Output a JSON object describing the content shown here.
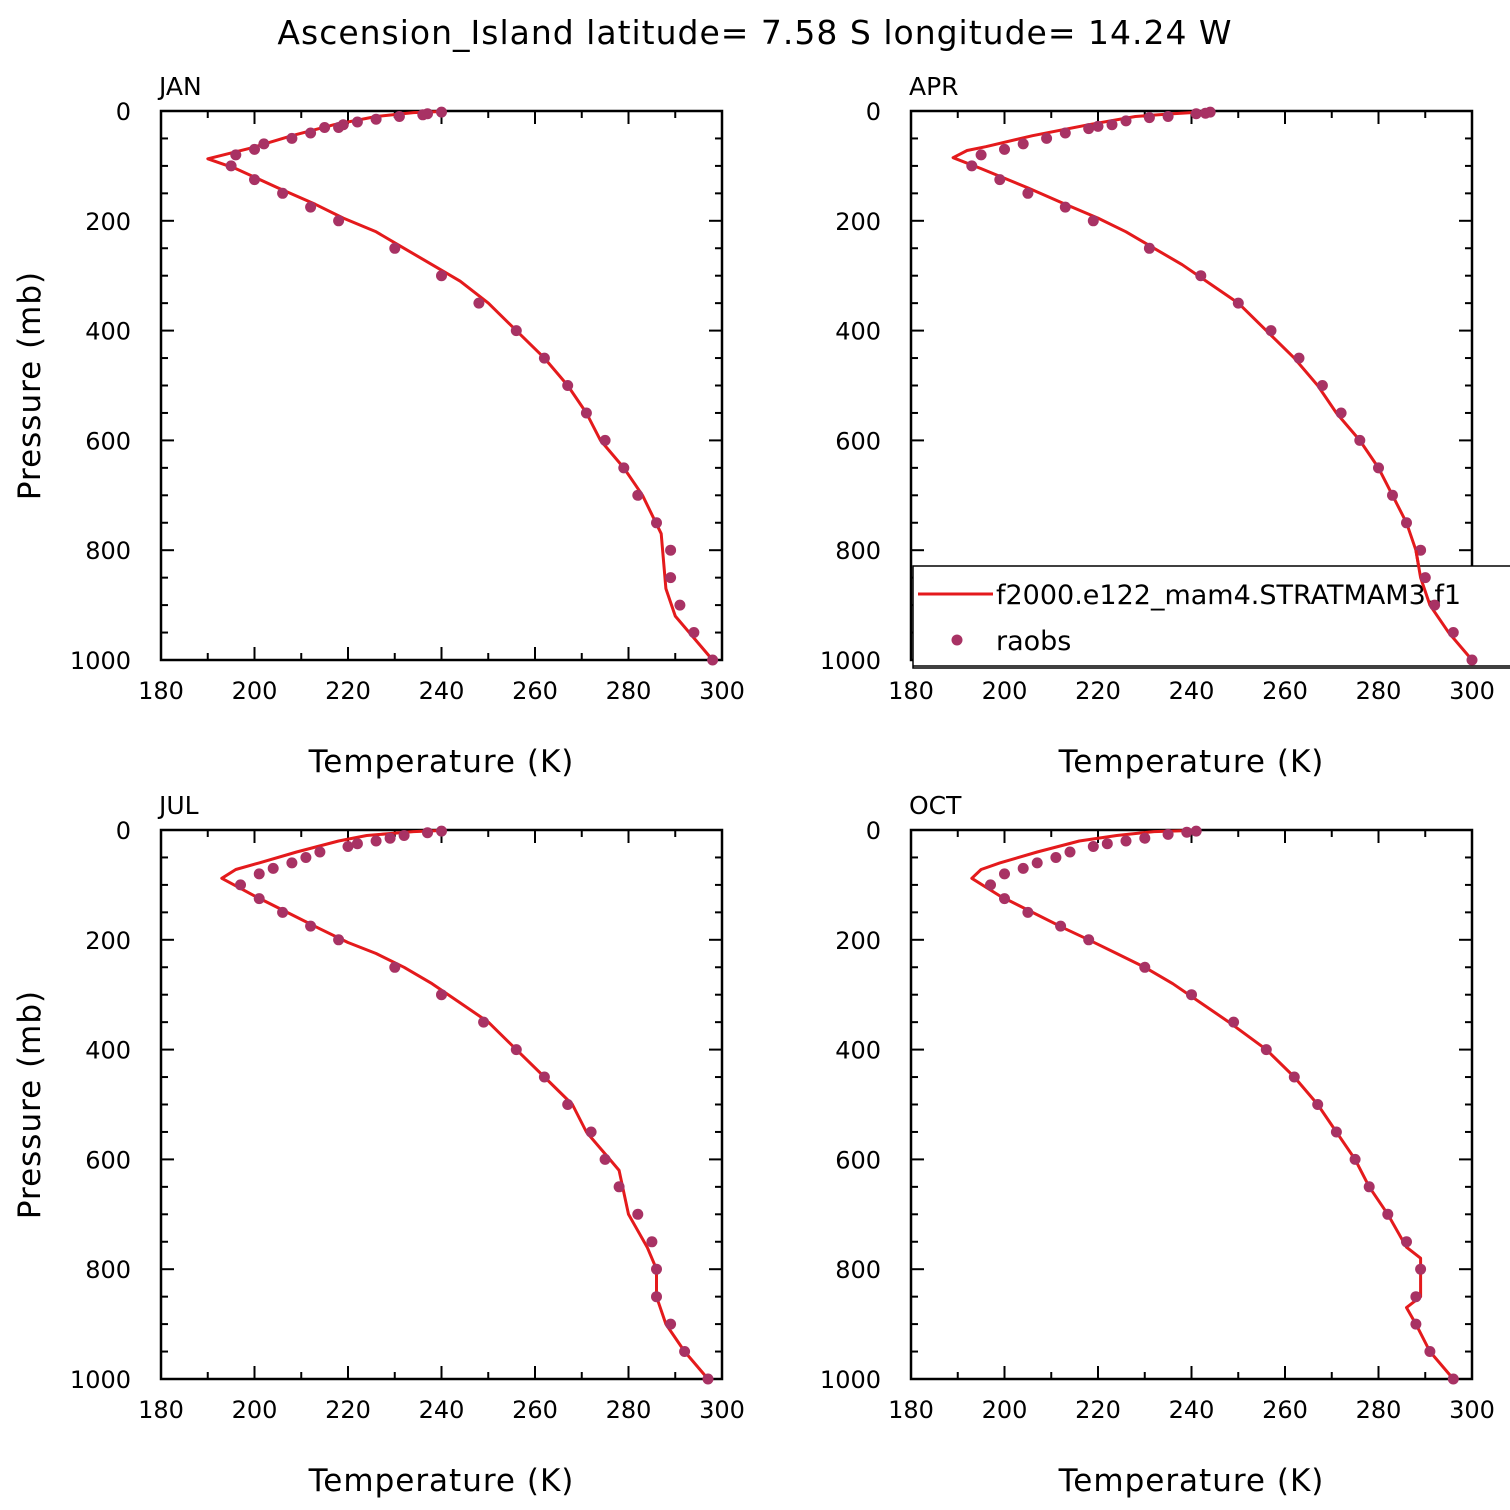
{
  "figure_title": "Ascension_Island  latitude= 7.58 S longitude= 14.24 W",
  "legend": {
    "line_label": "f2000.e122_mam4.STRATMAM3.f1",
    "dots_label": "raobs"
  },
  "colors": {
    "model_line": "#e41a1c",
    "obs_dots": "#a83264"
  },
  "chart_data": [
    {
      "type": "line",
      "title": "JAN",
      "xlabel": "Temperature (K)",
      "ylabel": "Pressure (mb)",
      "xlim": [
        180,
        300
      ],
      "ylim": [
        1000,
        0
      ],
      "xticks": [
        180,
        200,
        220,
        240,
        260,
        280,
        300
      ],
      "yticks": [
        0,
        200,
        400,
        600,
        800,
        1000
      ],
      "series": [
        {
          "name": "f2000.e122_mam4.STRATMAM3.f1",
          "kind": "line",
          "points": [
            [
              240,
              1
            ],
            [
              234,
              3
            ],
            [
              226,
              10
            ],
            [
              217,
              25
            ],
            [
              208,
              45
            ],
            [
              199,
              68
            ],
            [
              190,
              87
            ],
            [
              196,
              105
            ],
            [
              205,
              140
            ],
            [
              213,
              170
            ],
            [
              219,
              195
            ],
            [
              226,
              220
            ],
            [
              232,
              250
            ],
            [
              238,
              280
            ],
            [
              244,
              310
            ],
            [
              250,
              350
            ],
            [
              256,
              400
            ],
            [
              262,
              450
            ],
            [
              267,
              500
            ],
            [
              271,
              550
            ],
            [
              274,
              600
            ],
            [
              279,
              650
            ],
            [
              283,
              700
            ],
            [
              287,
              770
            ],
            [
              288,
              870
            ],
            [
              290,
              920
            ],
            [
              294,
              960
            ],
            [
              298,
              1000
            ]
          ]
        },
        {
          "name": "raobs",
          "kind": "scatter",
          "points": [
            [
              240,
              2
            ],
            [
              237,
              5
            ],
            [
              236,
              7
            ],
            [
              231,
              10
            ],
            [
              226,
              15
            ],
            [
              222,
              20
            ],
            [
              219,
              25
            ],
            [
              218,
              30
            ],
            [
              215,
              30
            ],
            [
              212,
              40
            ],
            [
              208,
              50
            ],
            [
              202,
              60
            ],
            [
              200,
              70
            ],
            [
              196,
              80
            ],
            [
              195,
              100
            ],
            [
              200,
              125
            ],
            [
              206,
              150
            ],
            [
              212,
              175
            ],
            [
              218,
              200
            ],
            [
              230,
              250
            ],
            [
              240,
              300
            ],
            [
              248,
              350
            ],
            [
              256,
              400
            ],
            [
              262,
              450
            ],
            [
              267,
              500
            ],
            [
              271,
              550
            ],
            [
              275,
              600
            ],
            [
              279,
              650
            ],
            [
              282,
              700
            ],
            [
              286,
              750
            ],
            [
              289,
              800
            ],
            [
              289,
              850
            ],
            [
              291,
              900
            ],
            [
              294,
              950
            ],
            [
              298,
              1000
            ]
          ]
        }
      ]
    },
    {
      "type": "line",
      "title": "APR",
      "xlabel": "Temperature (K)",
      "ylabel": "",
      "xlim": [
        180,
        300
      ],
      "ylim": [
        1000,
        0
      ],
      "xticks": [
        180,
        200,
        220,
        240,
        260,
        280,
        300
      ],
      "yticks": [
        0,
        200,
        400,
        600,
        800,
        1000
      ],
      "series": [
        {
          "name": "f2000.e122_mam4.STRATMAM3.f1",
          "kind": "line",
          "points": [
            [
              244,
              1
            ],
            [
              236,
              5
            ],
            [
              228,
              10
            ],
            [
              218,
              25
            ],
            [
              206,
              45
            ],
            [
              196,
              65
            ],
            [
              192,
              72
            ],
            [
              189,
              85
            ],
            [
              195,
              105
            ],
            [
              205,
              140
            ],
            [
              213,
              170
            ],
            [
              220,
              195
            ],
            [
              226,
              220
            ],
            [
              232,
              250
            ],
            [
              238,
              280
            ],
            [
              244,
              315
            ],
            [
              250,
              350
            ],
            [
              256,
              400
            ],
            [
              262,
              450
            ],
            [
              267,
              500
            ],
            [
              271,
              550
            ],
            [
              276,
              600
            ],
            [
              280,
              650
            ],
            [
              283,
              700
            ],
            [
              286,
              750
            ],
            [
              288,
              800
            ],
            [
              289,
              850
            ],
            [
              291,
              900
            ],
            [
              295,
              950
            ],
            [
              300,
              1000
            ]
          ]
        },
        {
          "name": "raobs",
          "kind": "scatter",
          "points": [
            [
              244,
              2
            ],
            [
              243,
              4
            ],
            [
              241,
              5
            ],
            [
              235,
              10
            ],
            [
              231,
              12
            ],
            [
              226,
              18
            ],
            [
              223,
              25
            ],
            [
              220,
              28
            ],
            [
              218,
              32
            ],
            [
              213,
              40
            ],
            [
              209,
              50
            ],
            [
              204,
              60
            ],
            [
              200,
              70
            ],
            [
              195,
              80
            ],
            [
              193,
              100
            ],
            [
              199,
              125
            ],
            [
              205,
              150
            ],
            [
              213,
              175
            ],
            [
              219,
              200
            ],
            [
              231,
              250
            ],
            [
              242,
              300
            ],
            [
              250,
              350
            ],
            [
              257,
              400
            ],
            [
              263,
              450
            ],
            [
              268,
              500
            ],
            [
              272,
              550
            ],
            [
              276,
              600
            ],
            [
              280,
              650
            ],
            [
              283,
              700
            ],
            [
              286,
              750
            ],
            [
              289,
              800
            ],
            [
              290,
              850
            ],
            [
              292,
              900
            ],
            [
              296,
              950
            ],
            [
              300,
              1000
            ]
          ]
        }
      ]
    },
    {
      "type": "line",
      "title": "JUL",
      "xlabel": "Temperature (K)",
      "ylabel": "Pressure (mb)",
      "xlim": [
        180,
        300
      ],
      "ylim": [
        1000,
        0
      ],
      "xticks": [
        180,
        200,
        220,
        240,
        260,
        280,
        300
      ],
      "yticks": [
        0,
        200,
        400,
        600,
        800,
        1000
      ],
      "series": [
        {
          "name": "f2000.e122_mam4.STRATMAM3.f1",
          "kind": "line",
          "points": [
            [
              240,
              1
            ],
            [
              234,
              3
            ],
            [
              224,
              10
            ],
            [
              218,
              20
            ],
            [
              209,
              40
            ],
            [
              201,
              60
            ],
            [
              196,
              72
            ],
            [
              193,
              88
            ],
            [
              200,
              120
            ],
            [
              207,
              150
            ],
            [
              214,
              180
            ],
            [
              220,
              205
            ],
            [
              226,
              225
            ],
            [
              232,
              250
            ],
            [
              238,
              280
            ],
            [
              244,
              315
            ],
            [
              250,
              350
            ],
            [
              256,
              400
            ],
            [
              262,
              450
            ],
            [
              268,
              500
            ],
            [
              271,
              550
            ],
            [
              276,
              600
            ],
            [
              278,
              620
            ],
            [
              280,
              700
            ],
            [
              284,
              760
            ],
            [
              286,
              800
            ],
            [
              286,
              850
            ],
            [
              288,
              900
            ],
            [
              292,
              950
            ],
            [
              297,
              1000
            ]
          ]
        },
        {
          "name": "raobs",
          "kind": "scatter",
          "points": [
            [
              240,
              2
            ],
            [
              237,
              5
            ],
            [
              232,
              10
            ],
            [
              229,
              15
            ],
            [
              226,
              20
            ],
            [
              222,
              25
            ],
            [
              220,
              30
            ],
            [
              214,
              40
            ],
            [
              211,
              50
            ],
            [
              208,
              60
            ],
            [
              204,
              70
            ],
            [
              201,
              80
            ],
            [
              197,
              100
            ],
            [
              201,
              125
            ],
            [
              206,
              150
            ],
            [
              212,
              175
            ],
            [
              218,
              200
            ],
            [
              230,
              250
            ],
            [
              240,
              300
            ],
            [
              249,
              350
            ],
            [
              256,
              400
            ],
            [
              262,
              450
            ],
            [
              267,
              500
            ],
            [
              272,
              550
            ],
            [
              275,
              600
            ],
            [
              278,
              650
            ],
            [
              282,
              700
            ],
            [
              285,
              750
            ],
            [
              286,
              800
            ],
            [
              286,
              850
            ],
            [
              289,
              900
            ],
            [
              292,
              950
            ],
            [
              297,
              1000
            ]
          ]
        }
      ]
    },
    {
      "type": "line",
      "title": "OCT",
      "xlabel": "Temperature (K)",
      "ylabel": "",
      "xlim": [
        180,
        300
      ],
      "ylim": [
        1000,
        0
      ],
      "xticks": [
        180,
        200,
        220,
        240,
        260,
        280,
        300
      ],
      "yticks": [
        0,
        200,
        400,
        600,
        800,
        1000
      ],
      "series": [
        {
          "name": "f2000.e122_mam4.STRATMAM3.f1",
          "kind": "line",
          "points": [
            [
              240,
              1
            ],
            [
              232,
              3
            ],
            [
              224,
              10
            ],
            [
              216,
              20
            ],
            [
              207,
              40
            ],
            [
              199,
              60
            ],
            [
              195,
              72
            ],
            [
              193,
              88
            ],
            [
              199,
              120
            ],
            [
              206,
              150
            ],
            [
              213,
              180
            ],
            [
              218,
              200
            ],
            [
              224,
              225
            ],
            [
              230,
              250
            ],
            [
              236,
              280
            ],
            [
              242,
              315
            ],
            [
              248,
              350
            ],
            [
              256,
              400
            ],
            [
              262,
              450
            ],
            [
              267,
              500
            ],
            [
              271,
              550
            ],
            [
              275,
              600
            ],
            [
              278,
              650
            ],
            [
              282,
              700
            ],
            [
              286,
              760
            ],
            [
              289,
              780
            ],
            [
              289,
              850
            ],
            [
              286,
              870
            ],
            [
              288,
              900
            ],
            [
              291,
              950
            ],
            [
              296,
              1000
            ]
          ]
        },
        {
          "name": "raobs",
          "kind": "scatter",
          "points": [
            [
              241,
              2
            ],
            [
              239,
              4
            ],
            [
              235,
              8
            ],
            [
              230,
              15
            ],
            [
              226,
              20
            ],
            [
              222,
              25
            ],
            [
              219,
              30
            ],
            [
              214,
              40
            ],
            [
              211,
              50
            ],
            [
              207,
              60
            ],
            [
              204,
              70
            ],
            [
              200,
              80
            ],
            [
              197,
              100
            ],
            [
              200,
              125
            ],
            [
              205,
              150
            ],
            [
              212,
              175
            ],
            [
              218,
              200
            ],
            [
              230,
              250
            ],
            [
              240,
              300
            ],
            [
              249,
              350
            ],
            [
              256,
              400
            ],
            [
              262,
              450
            ],
            [
              267,
              500
            ],
            [
              271,
              550
            ],
            [
              275,
              600
            ],
            [
              278,
              650
            ],
            [
              282,
              700
            ],
            [
              286,
              750
            ],
            [
              289,
              800
            ],
            [
              288,
              850
            ],
            [
              288,
              900
            ],
            [
              291,
              950
            ],
            [
              296,
              1000
            ]
          ]
        }
      ]
    }
  ]
}
